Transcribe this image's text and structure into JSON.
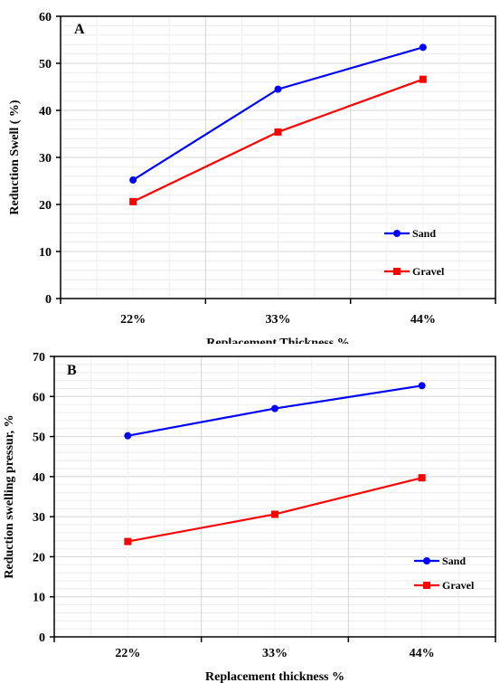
{
  "chart_data": [
    {
      "type": "line",
      "panel_label": "A",
      "categories": [
        "22%",
        "33%",
        "44%"
      ],
      "series": [
        {
          "name": "Sand",
          "values": [
            25.2,
            44.5,
            53.4
          ],
          "color": "#0000ff",
          "marker": "circle"
        },
        {
          "name": "Gravel",
          "values": [
            20.6,
            35.4,
            46.6
          ],
          "color": "#ff0000",
          "marker": "square"
        }
      ],
      "xlabel": "Replacement Thickness %",
      "ylabel": "Reduction Swell ( %)",
      "ylim": [
        0,
        60
      ],
      "yticks": [
        0,
        10,
        20,
        30,
        40,
        50,
        60
      ],
      "grid": true,
      "legend_position": "bottom-right"
    },
    {
      "type": "line",
      "panel_label": "B",
      "categories": [
        "22%",
        "33%",
        "44%"
      ],
      "series": [
        {
          "name": "Sand",
          "values": [
            50.2,
            57.0,
            62.7
          ],
          "color": "#0000ff",
          "marker": "circle"
        },
        {
          "name": "Gravel",
          "values": [
            23.8,
            30.6,
            39.7
          ],
          "color": "#ff0000",
          "marker": "square"
        }
      ],
      "xlabel": "Replacement thickness %",
      "ylabel": "Reduction swelling pressur, %",
      "ylim": [
        0,
        70
      ],
      "yticks": [
        0,
        10,
        20,
        30,
        40,
        50,
        60,
        70
      ],
      "grid": true,
      "legend_position": "bottom-right"
    }
  ]
}
